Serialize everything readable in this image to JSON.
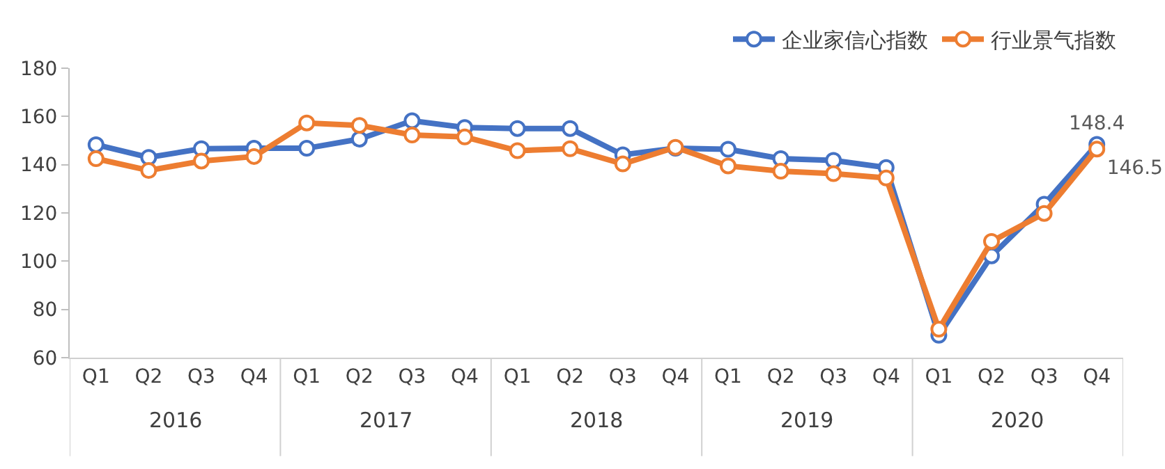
{
  "chart_data": {
    "type": "line",
    "categories": [
      "Q1",
      "Q2",
      "Q3",
      "Q4",
      "Q1",
      "Q2",
      "Q3",
      "Q4",
      "Q1",
      "Q2",
      "Q3",
      "Q4",
      "Q1",
      "Q2",
      "Q3",
      "Q4",
      "Q1",
      "Q2",
      "Q3",
      "Q4"
    ],
    "annotations": [
      "2016",
      "2017",
      "2018",
      "2019",
      "2020"
    ],
    "series": [
      {
        "name": "企业家信心指数",
        "color": "#4472c4",
        "values": [
          148.3,
          143,
          146.6,
          146.8,
          146.8,
          150.6,
          158.2,
          155.4,
          155,
          155,
          144.1,
          146.8,
          146.4,
          142.5,
          141.8,
          138.8,
          69.3,
          102.2,
          123.6,
          148.4
        ],
        "value_labels": [
          null,
          null,
          null,
          null,
          null,
          null,
          null,
          null,
          null,
          null,
          null,
          null,
          null,
          null,
          null,
          null,
          null,
          null,
          null,
          "148.4"
        ]
      },
      {
        "name": "行业景气指数",
        "color": "#ed7d31",
        "values": [
          142.5,
          137.6,
          141.5,
          143.4,
          157.3,
          156.3,
          152.3,
          151.5,
          145.8,
          146.6,
          140.3,
          147.2,
          139.5,
          137.3,
          136.3,
          134.5,
          71.8,
          108.2,
          119.8,
          146.5
        ],
        "value_labels": [
          null,
          null,
          null,
          null,
          null,
          null,
          null,
          null,
          null,
          null,
          null,
          null,
          null,
          null,
          null,
          null,
          null,
          null,
          null,
          "146.5"
        ]
      }
    ],
    "ylim": [
      60,
      180
    ],
    "yticks": [
      60,
      80,
      100,
      120,
      140,
      160,
      180
    ],
    "marker": "circle",
    "line_style": "solid",
    "legend": "top right"
  }
}
